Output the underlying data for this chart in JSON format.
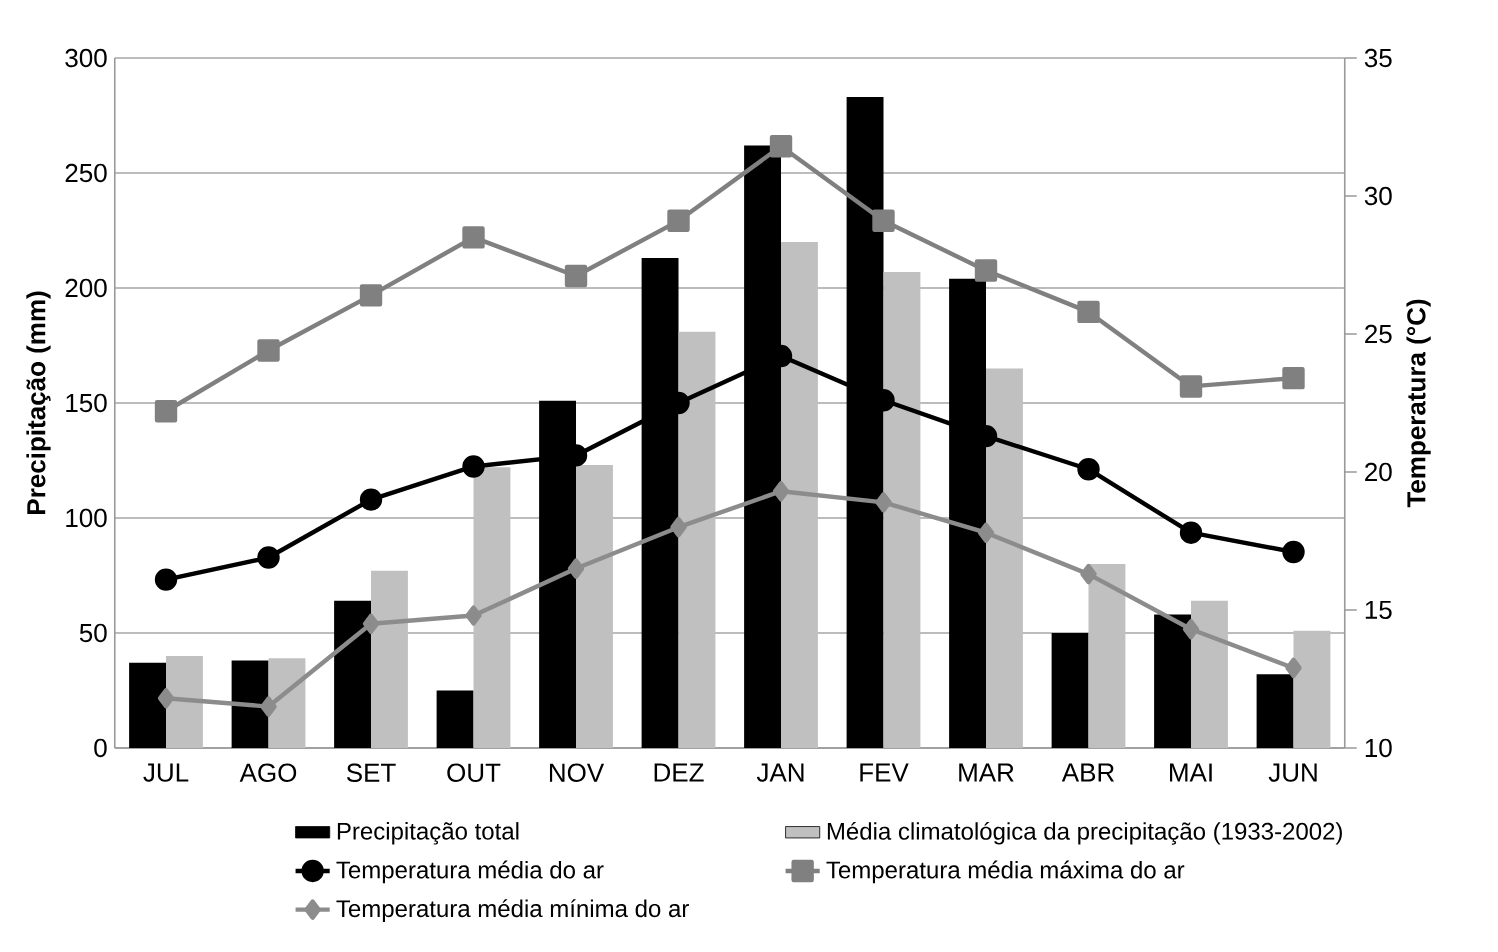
{
  "chart_data": {
    "type": "bar",
    "categories": [
      "JUL",
      "AGO",
      "SET",
      "OUT",
      "NOV",
      "DEZ",
      "JAN",
      "FEV",
      "MAR",
      "ABR",
      "MAI",
      "JUN"
    ],
    "ylabel": "Precipitação (mm)",
    "y2label": "Temperatura (°C)",
    "ylim": [
      0,
      300
    ],
    "yticks": [
      0,
      50,
      100,
      150,
      200,
      250,
      300
    ],
    "y2lim": [
      10,
      35
    ],
    "y2ticks": [
      10,
      15,
      20,
      25,
      30,
      35
    ],
    "grid": "y",
    "legend": "bottom",
    "series": [
      {
        "name": "Precipitação total",
        "color": "#000000",
        "values": [
          37,
          38,
          64,
          25,
          151,
          213,
          262,
          283,
          204,
          50,
          58,
          32
        ]
      },
      {
        "name": "Média climatológica da precipitação (1933-2002)",
        "color": "#c0c0c0",
        "values": [
          40,
          39,
          77,
          122,
          123,
          181,
          220,
          207,
          165,
          80,
          64,
          51
        ]
      },
      {
        "name": "Temperatura média do ar",
        "type": "line",
        "axis": "y2",
        "marker": "circle",
        "color": "#000000",
        "values": [
          16.1,
          16.9,
          19.0,
          20.2,
          20.6,
          22.5,
          24.2,
          22.6,
          21.3,
          20.1,
          17.8,
          17.1
        ]
      },
      {
        "name": "Temperatura média máxima  do ar",
        "type": "line",
        "axis": "y2",
        "marker": "square",
        "color": "#808080",
        "values": [
          22.2,
          24.4,
          26.4,
          28.5,
          27.1,
          29.1,
          31.8,
          29.1,
          27.3,
          25.8,
          23.1,
          23.4
        ]
      },
      {
        "name": "Temperatura média mínima  do ar",
        "type": "line",
        "axis": "y2",
        "marker": "diamond",
        "color": "#8c8c8c",
        "values": [
          11.8,
          11.5,
          14.5,
          14.8,
          16.5,
          18.0,
          19.3,
          18.9,
          17.8,
          16.3,
          14.3,
          12.9
        ]
      }
    ]
  }
}
